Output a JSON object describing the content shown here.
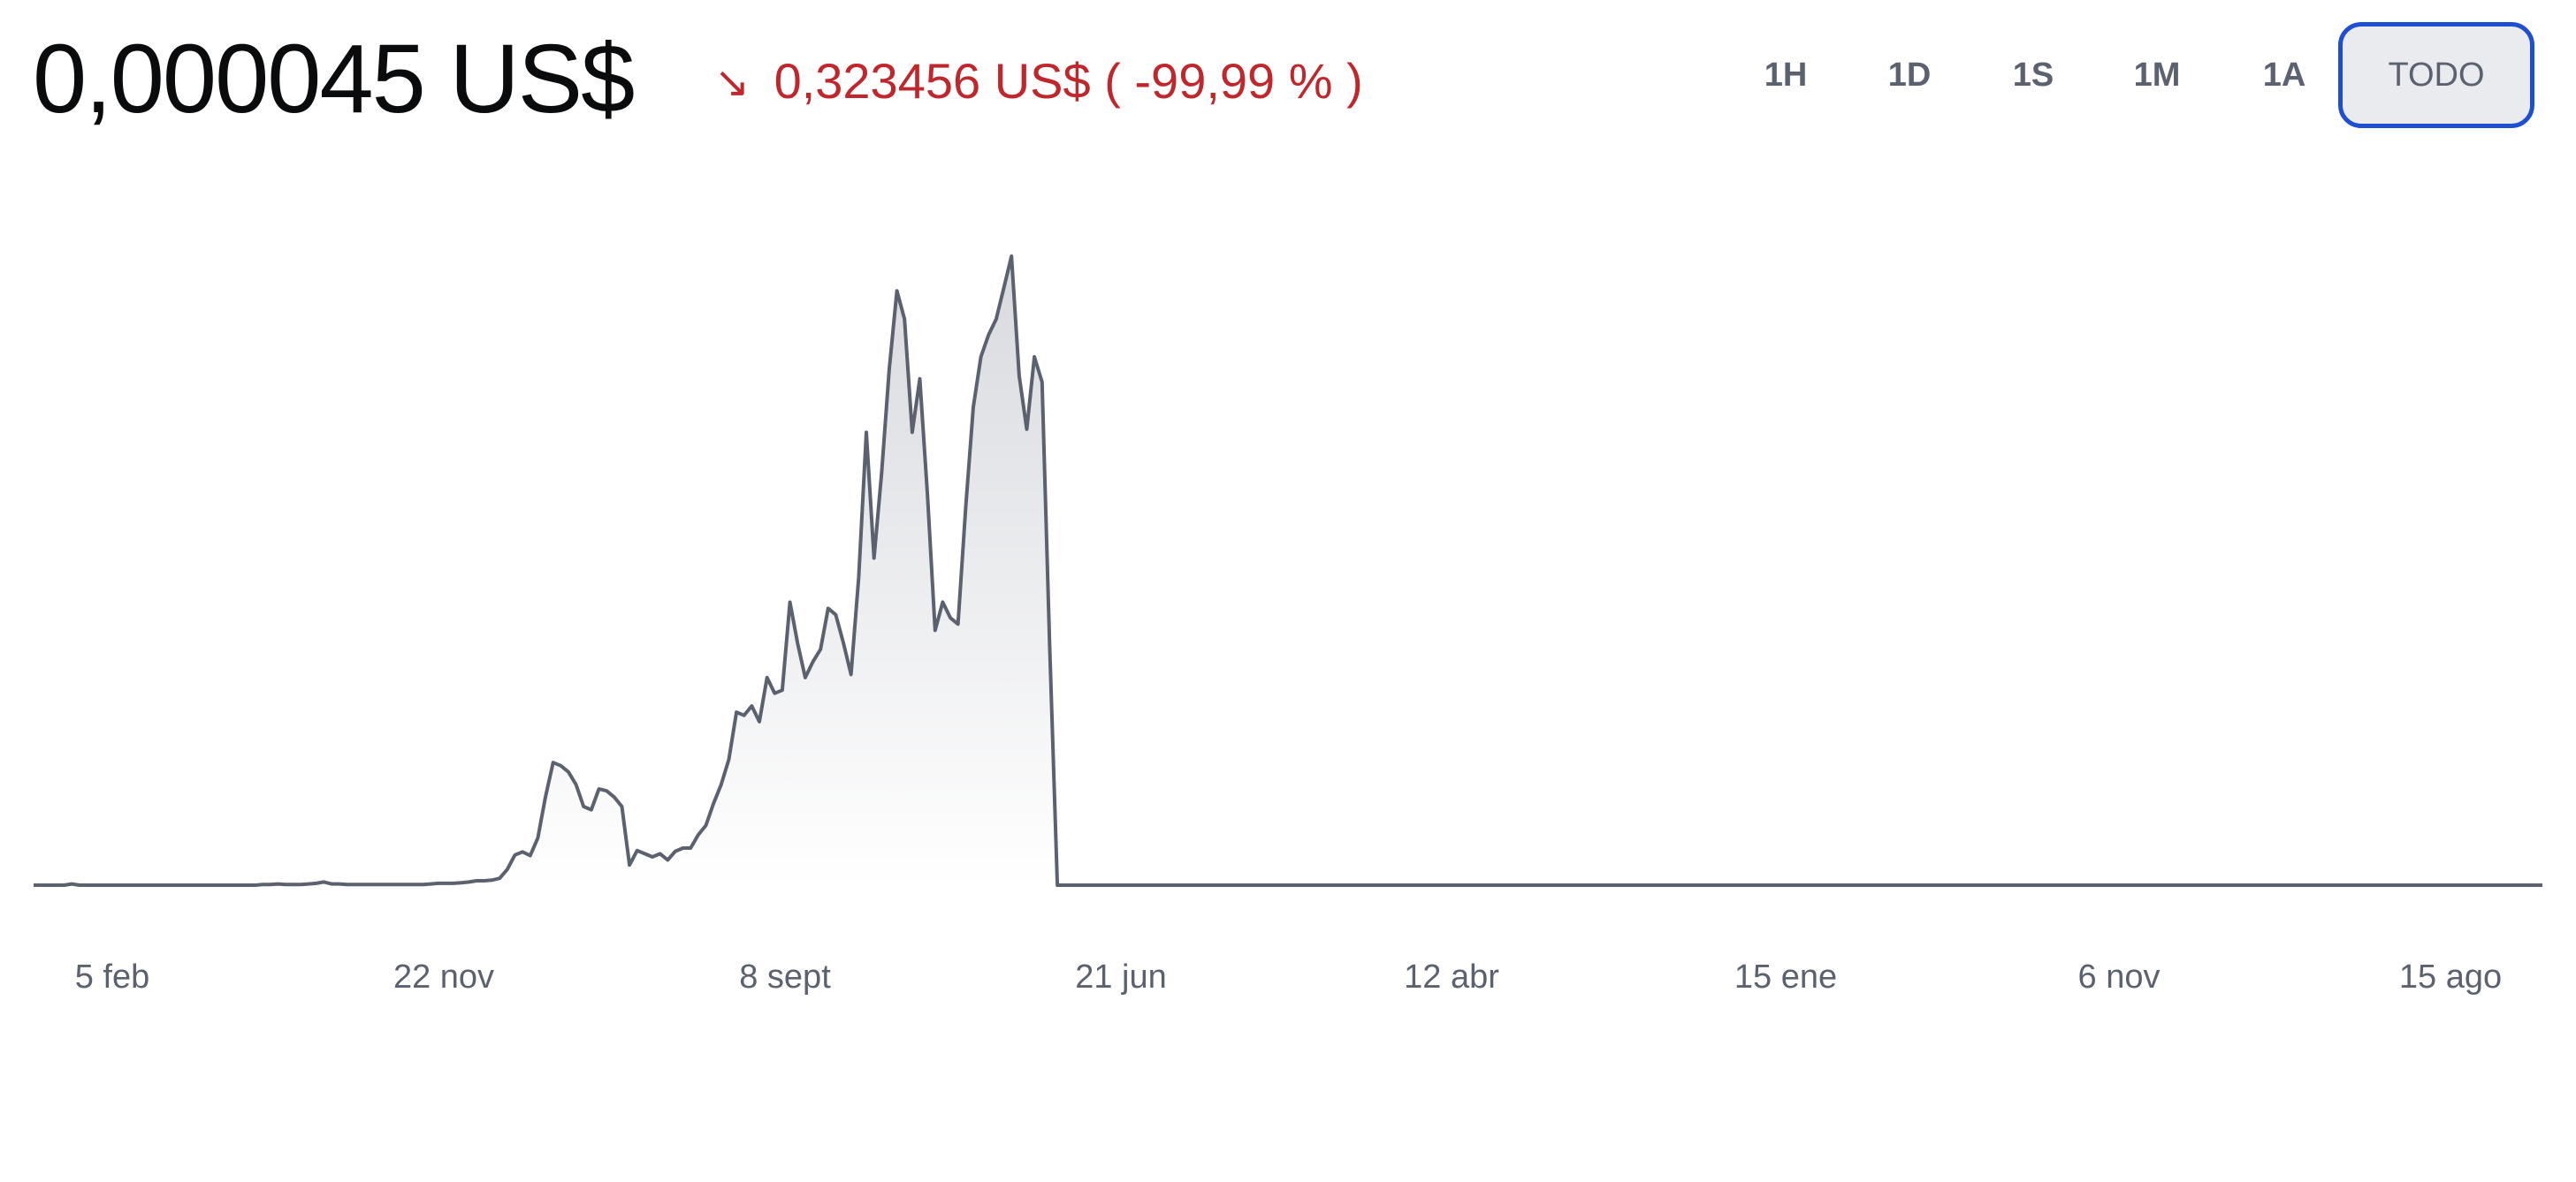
{
  "header": {
    "price": "0,000045 US$",
    "change_arrow": "↘",
    "change_amount": "0,323456 US$",
    "change_percent": "( -99,99 % )"
  },
  "tabs": [
    {
      "label": "1H",
      "active": false
    },
    {
      "label": "1D",
      "active": false
    },
    {
      "label": "1S",
      "active": false
    },
    {
      "label": "1M",
      "active": false
    },
    {
      "label": "1A",
      "active": false
    },
    {
      "label": "TODO",
      "active": true
    }
  ],
  "colors": {
    "negative": "#c0272d",
    "line": "#5b616e",
    "active_border": "#1f4fd1",
    "active_bg": "#eaebef"
  },
  "chart_data": {
    "type": "area",
    "x_tick_labels": [
      "5 feb",
      "22 nov",
      "8 sept",
      "21 jun",
      "12 abr",
      "15 ene",
      "6 nov",
      "15 ago"
    ],
    "values": [
      0,
      0,
      0,
      0,
      0,
      0.002,
      0,
      0,
      0,
      0,
      0,
      0,
      0,
      0,
      0,
      0,
      0,
      0,
      0,
      0,
      0,
      0,
      0,
      0,
      0,
      0,
      0,
      0,
      0,
      0,
      0.001,
      0.001,
      0.002,
      0.001,
      0.001,
      0.001,
      0.002,
      0.003,
      0.005,
      0.002,
      0.002,
      0.001,
      0.001,
      0.001,
      0.001,
      0.001,
      0.001,
      0.001,
      0.001,
      0.001,
      0.001,
      0.001,
      0.002,
      0.003,
      0.003,
      0.003,
      0.004,
      0.005,
      0.007,
      0.007,
      0.008,
      0.011,
      0.025,
      0.048,
      0.053,
      0.047,
      0.075,
      0.14,
      0.195,
      0.19,
      0.18,
      0.16,
      0.125,
      0.12,
      0.153,
      0.15,
      0.14,
      0.125,
      0.032,
      0.055,
      0.05,
      0.045,
      0.05,
      0.04,
      0.054,
      0.059,
      0.059,
      0.08,
      0.095,
      0.13,
      0.16,
      0.2,
      0.275,
      0.27,
      0.285,
      0.26,
      0.33,
      0.305,
      0.31,
      0.45,
      0.385,
      0.33,
      0.355,
      0.375,
      0.44,
      0.43,
      0.385,
      0.335,
      0.49,
      0.72,
      0.52,
      0.655,
      0.82,
      0.945,
      0.9,
      0.72,
      0.805,
      0.62,
      0.405,
      0.45,
      0.425,
      0.415,
      0.6,
      0.76,
      0.84,
      0.875,
      0.9,
      0.95,
      1.0,
      0.81,
      0.725,
      0.84,
      0.8,
      0.38,
      0.0,
      0.0,
      0.0,
      0.0
    ]
  }
}
